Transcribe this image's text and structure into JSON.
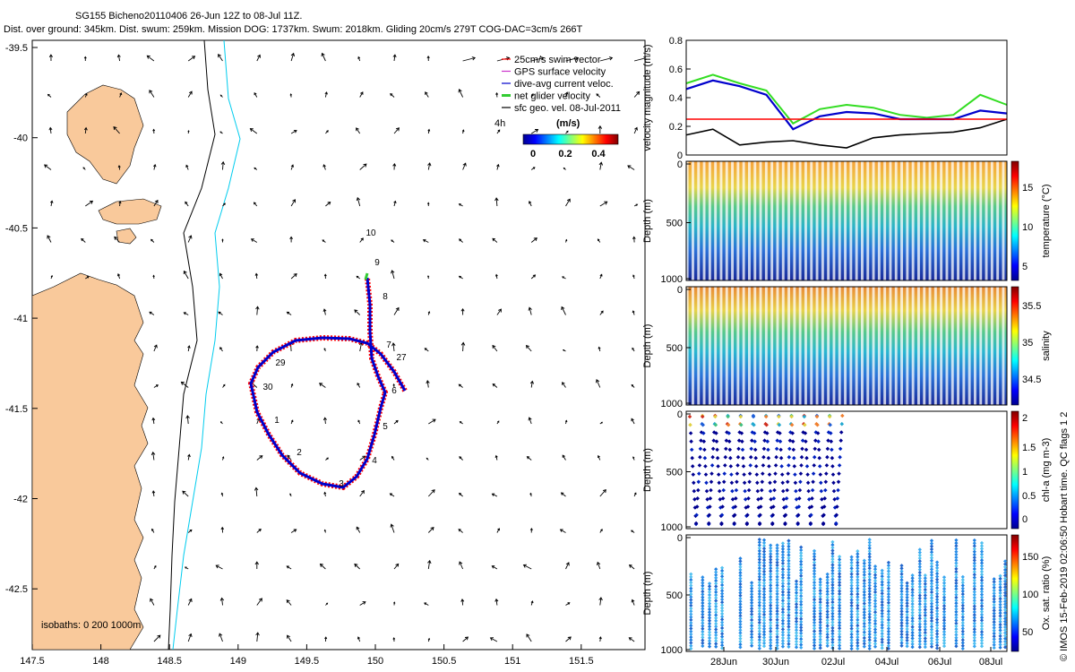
{
  "header": {
    "line1": "SG155 Bicheno20110406 26-Jun 12Z to 08-Jul 11Z.",
    "line2": "Dist. over ground: 345km. Dist. swum: 259km. Mission DOG: 1737km. Swum: 2018km. Gliding 20cm/s 279T COG-DAC=3cm/s 266T"
  },
  "map": {
    "xticks": [
      "147.5",
      "148",
      "148.5",
      "149",
      "149.5",
      "150",
      "150.5",
      "151",
      "151.5"
    ],
    "yticks": [
      "-39.5",
      "-40",
      "-40.5",
      "-41",
      "-41.5",
      "-42",
      "-42.5"
    ],
    "legend": [
      "25cm/s swim vector",
      "GPS surface velocity",
      "dive-avg current veloc.",
      "net glider velocity",
      "sfc geo. vel. 08-Jul-2011"
    ],
    "arrow_scale_label": "4h",
    "colorbar_label": "(m/s)",
    "colorbar_ticks": [
      "0",
      "0.2",
      "0.4"
    ],
    "isobaths": "isobaths: 0   200  1000m",
    "day_labels": [
      "1",
      "2",
      "3",
      "4",
      "5",
      "6",
      "7",
      "8",
      "9",
      "10",
      "27",
      "29",
      "30"
    ],
    "colors": {
      "land": "#f9c99b",
      "coast200": "#000000",
      "coast1000": "#00ccee",
      "track_red": "#ff0000",
      "track_blue": "#0000cc"
    }
  },
  "panels": {
    "velocity": {
      "ylabel": "velocity magnitude (m/s)",
      "yticks": [
        "0",
        "0.2",
        "0.4",
        "0.6",
        "0.8"
      ]
    },
    "temperature": {
      "ylabel": "Depth (m)",
      "clabel": "temperature (°C)",
      "yticks": [
        "0",
        "500",
        "1000"
      ],
      "cticks": [
        "5",
        "10",
        "15"
      ]
    },
    "salinity": {
      "ylabel": "Depth (m)",
      "clabel": "salinity",
      "yticks": [
        "0",
        "500",
        "1000"
      ],
      "cticks": [
        "34.5",
        "35",
        "35.5"
      ]
    },
    "chla": {
      "ylabel": "Depth (m)",
      "clabel": "chl-a (mg m-3)",
      "yticks": [
        "0",
        "500",
        "1000"
      ],
      "cticks": [
        "0",
        "0.5",
        "1",
        "1.5",
        "2"
      ]
    },
    "oxygen": {
      "ylabel": "Depth (m)",
      "clabel": "Ox. sat. ratio (%)",
      "yticks": [
        "0",
        "500",
        "1000"
      ],
      "cticks": [
        "50",
        "100",
        "150"
      ]
    },
    "xticks": [
      "28Jun",
      "30Jun",
      "02Jul",
      "04Jul",
      "06Jul",
      "08Jul"
    ]
  },
  "credit": "© IMOS 15-Feb-2019 02:06:50 Hobart time. QC flags 1  2",
  "chart_data": [
    {
      "type": "line",
      "title": "",
      "xlabel": "",
      "ylabel": "velocity magnitude (m/s)",
      "ylim": [
        0,
        0.8
      ],
      "x": [
        "26Jun",
        "27Jun",
        "28Jun",
        "29Jun",
        "30Jun",
        "01Jul",
        "02Jul",
        "03Jul",
        "04Jul",
        "05Jul",
        "06Jul",
        "07Jul",
        "08Jul"
      ],
      "series": [
        {
          "values": [
            0.46,
            0.52,
            0.48,
            0.42,
            0.18,
            0.27,
            0.3,
            0.29,
            0.25,
            0.25,
            0.25,
            0.31,
            0.29
          ]
        },
        {
          "values": [
            0.14,
            0.18,
            0.07,
            0.09,
            0.1,
            0.07,
            0.05,
            0.12,
            0.14,
            0.15,
            0.16,
            0.19,
            0.25
          ]
        },
        {
          "values": [
            0.25,
            0.25,
            0.25,
            0.25,
            0.25,
            0.25,
            0.25,
            0.25,
            0.25,
            0.25,
            0.25,
            0.25,
            0.25
          ]
        },
        {
          "values": [
            0.5,
            0.56,
            0.5,
            0.45,
            0.22,
            0.32,
            0.35,
            0.33,
            0.28,
            0.26,
            0.28,
            0.42,
            0.35
          ]
        }
      ]
    },
    {
      "type": "heatmap",
      "ylabel": "Depth (m)",
      "clabel": "temperature (°C)",
      "ylim": [
        1000,
        0
      ],
      "clim": [
        4,
        18
      ]
    },
    {
      "type": "heatmap",
      "ylabel": "Depth (m)",
      "clabel": "salinity",
      "ylim": [
        1000,
        0
      ],
      "clim": [
        34.3,
        35.6
      ]
    },
    {
      "type": "heatmap",
      "ylabel": "Depth (m)",
      "clabel": "chl-a (mg m-3)",
      "ylim": [
        1000,
        0
      ],
      "clim": [
        0,
        2
      ]
    },
    {
      "type": "heatmap",
      "ylabel": "Depth (m)",
      "clabel": "Ox. sat. ratio (%)",
      "ylim": [
        1000,
        0
      ],
      "clim": [
        20,
        175
      ]
    }
  ]
}
